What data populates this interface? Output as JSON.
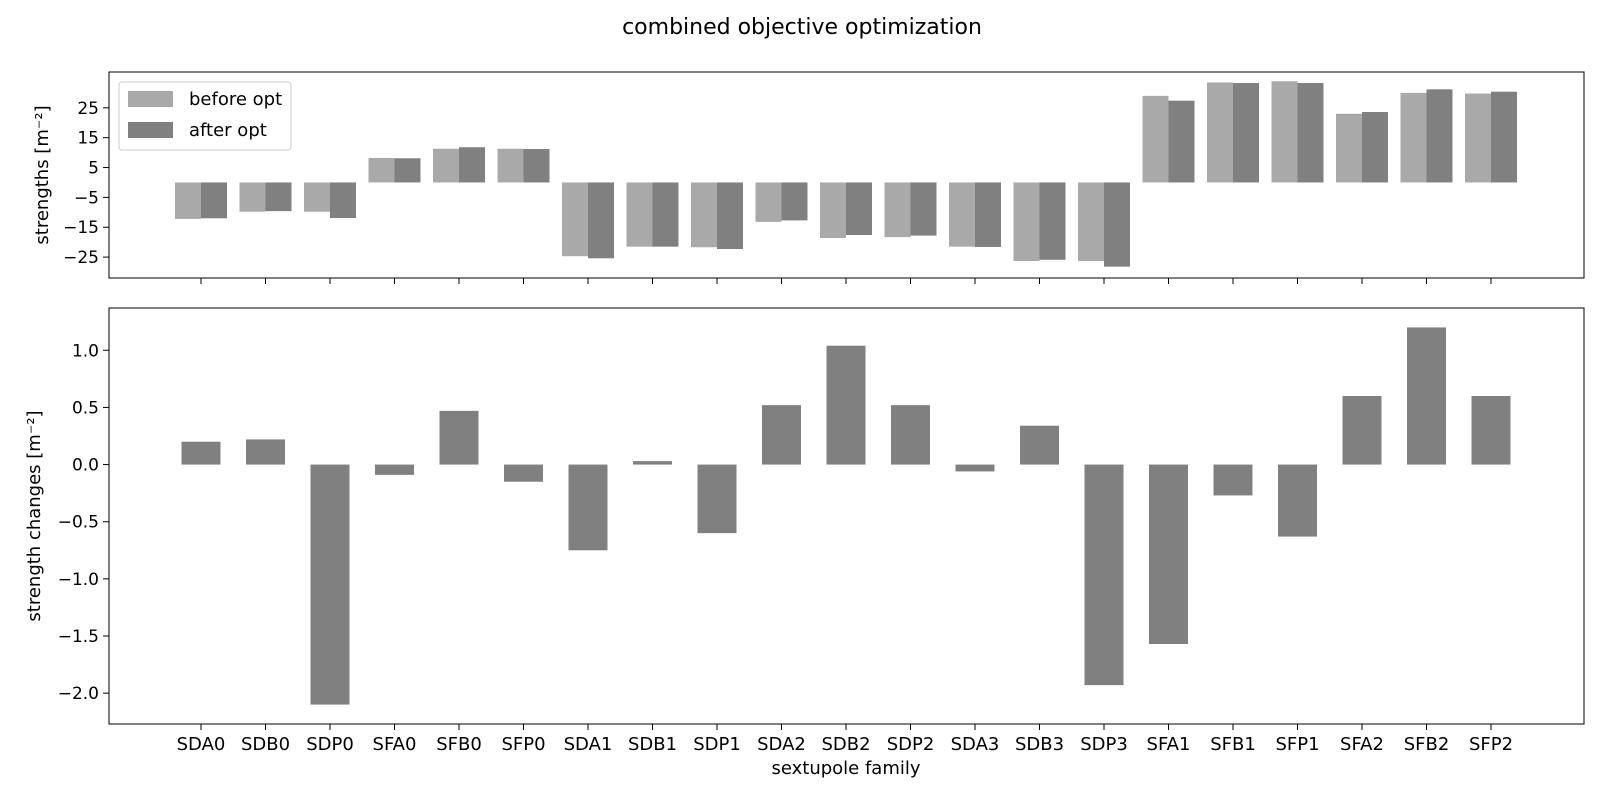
{
  "figure": {
    "title": "combined objective optimization"
  },
  "chart_data": [
    {
      "type": "bar",
      "ylabel": "strengths [m⁻²]",
      "xlabel": "",
      "ylim": [
        -32,
        37
      ],
      "yticks": [
        -25,
        -15,
        -5,
        5,
        15,
        25
      ],
      "ytick_labels": [
        "−25",
        "−15",
        "−5",
        "5",
        "15",
        "25"
      ],
      "grid": false,
      "legend": "top-left",
      "categories": [
        "SDA0",
        "SDB0",
        "SDP0",
        "SFA0",
        "SFB0",
        "SFP0",
        "SDA1",
        "SDB1",
        "SDP1",
        "SDA2",
        "SDB2",
        "SDP2",
        "SDA3",
        "SDB3",
        "SDP3",
        "SFA1",
        "SFB1",
        "SFP1",
        "SFA2",
        "SFB2",
        "SFP2"
      ],
      "series": [
        {
          "name": "before opt",
          "color": "#a9a9a9",
          "values": [
            -12.2,
            -9.8,
            -9.8,
            8.2,
            11.3,
            11.3,
            -24.7,
            -21.5,
            -21.7,
            -13.2,
            -18.6,
            -18.3,
            -21.5,
            -26.3,
            -26.3,
            29.0,
            33.5,
            33.9,
            23.0,
            30.0,
            29.8
          ]
        },
        {
          "name": "after opt",
          "color": "#808080",
          "values": [
            -12.0,
            -9.6,
            -11.9,
            8.1,
            11.8,
            11.2,
            -25.4,
            -21.5,
            -22.3,
            -12.7,
            -17.6,
            -17.8,
            -21.6,
            -25.9,
            -28.2,
            27.4,
            33.3,
            33.3,
            23.6,
            31.2,
            30.4
          ]
        }
      ]
    },
    {
      "type": "bar",
      "ylabel": "strength changes [m⁻²]",
      "xlabel": "sextupole family",
      "ylim": [
        -2.27,
        1.37
      ],
      "yticks": [
        -2.0,
        -1.5,
        -1.0,
        -0.5,
        0.0,
        0.5,
        1.0
      ],
      "ytick_labels": [
        "−2.0",
        "−1.5",
        "−1.0",
        "−0.5",
        "0.0",
        "0.5",
        "1.0"
      ],
      "grid": false,
      "categories": [
        "SDA0",
        "SDB0",
        "SDP0",
        "SFA0",
        "SFB0",
        "SFP0",
        "SDA1",
        "SDB1",
        "SDP1",
        "SDA2",
        "SDB2",
        "SDP2",
        "SDA3",
        "SDB3",
        "SDP3",
        "SFA1",
        "SFB1",
        "SFP1",
        "SFA2",
        "SFB2",
        "SFP2"
      ],
      "series": [
        {
          "color": "#808080",
          "values": [
            0.2,
            0.22,
            -2.1,
            -0.09,
            0.47,
            -0.15,
            -0.75,
            0.03,
            -0.6,
            0.52,
            1.04,
            0.52,
            -0.06,
            0.34,
            -1.93,
            -1.57,
            -0.27,
            -0.63,
            0.6,
            1.2,
            0.6
          ]
        }
      ]
    }
  ]
}
